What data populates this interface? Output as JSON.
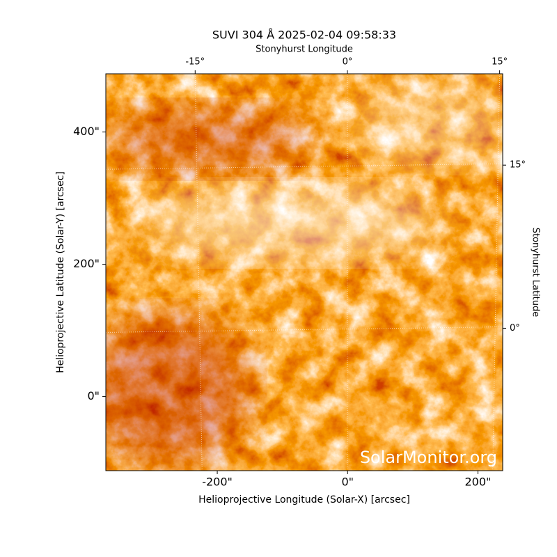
{
  "chart_data": {
    "type": "image",
    "title": "SUVI 304 Å 2025-02-04 09:58:33",
    "xlabel": "Helioprojective Longitude (Solar-X) [arcsec]",
    "ylabel": "Helioprojective Latitude (Solar-Y) [arcsec]",
    "x2label": "Stonyhurst Longitude",
    "y2label": "Stonyhurst Latitude",
    "xlim": [
      -371,
      238
    ],
    "ylim": [
      -112,
      488
    ],
    "xticks": [
      {
        "value": -200,
        "label": "-200\""
      },
      {
        "value": 0,
        "label": "0\""
      },
      {
        "value": 200,
        "label": "200\""
      }
    ],
    "yticks": [
      {
        "value": 0,
        "label": "0\""
      },
      {
        "value": 200,
        "label": "200\""
      },
      {
        "value": 400,
        "label": "400\""
      }
    ],
    "x2lim": [
      -23.8,
      15.3
    ],
    "x2ticks": [
      {
        "value": -15,
        "label": "-15°"
      },
      {
        "value": 0,
        "label": "0°"
      },
      {
        "value": 15,
        "label": "15°"
      }
    ],
    "y2lim": [
      -13.1,
      23.4
    ],
    "y2ticks": [
      {
        "value": 0,
        "label": "0°"
      },
      {
        "value": 15,
        "label": "15°"
      }
    ],
    "watermark": "SolarMonitor.org"
  }
}
